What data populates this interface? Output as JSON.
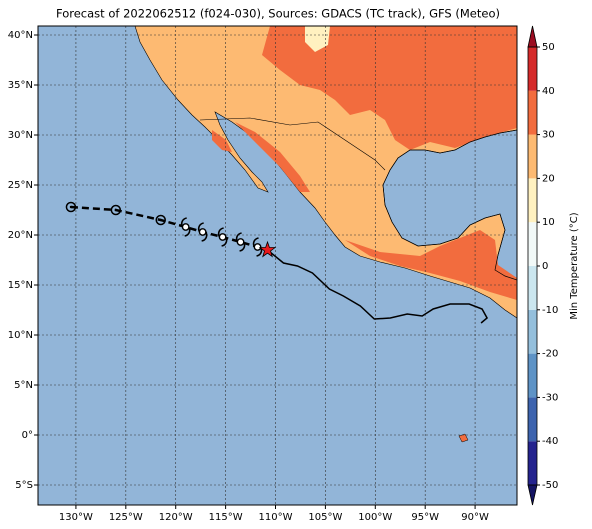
{
  "chart_data": {
    "type": "map",
    "title": "Forecast of 2022062512 (f024-030), Sources: GDACS (TC track), GFS (Meteo)",
    "xlim": [
      -133.8,
      -85.8
    ],
    "ylim": [
      -7,
      40.9
    ],
    "xticks": [
      {
        "value": -130,
        "label": "130°W"
      },
      {
        "value": -125,
        "label": "125°W"
      },
      {
        "value": -120,
        "label": "120°W"
      },
      {
        "value": -115,
        "label": "115°W"
      },
      {
        "value": -110,
        "label": "110°W"
      },
      {
        "value": -105,
        "label": "105°W"
      },
      {
        "value": -100,
        "label": "100°W"
      },
      {
        "value": -95,
        "label": "95°W"
      },
      {
        "value": -90,
        "label": "90°W"
      }
    ],
    "yticks": [
      {
        "value": -5,
        "label": "5°S"
      },
      {
        "value": 0,
        "label": "0°"
      },
      {
        "value": 5,
        "label": "5°N"
      },
      {
        "value": 10,
        "label": "10°N"
      },
      {
        "value": 15,
        "label": "15°N"
      },
      {
        "value": 20,
        "label": "20°N"
      },
      {
        "value": 25,
        "label": "25°N"
      },
      {
        "value": 30,
        "label": "30°N"
      },
      {
        "value": 35,
        "label": "35°N"
      },
      {
        "value": 40,
        "label": "40°N"
      }
    ],
    "grid": true,
    "ocean_color": "#92b5d8",
    "track_circles": {
      "lon": [
        -130.5,
        -126,
        -121.5
      ],
      "lat": [
        22.8,
        22.5,
        21.5
      ]
    },
    "track_hurricanes": {
      "lon": [
        -119,
        -117.3,
        -115.3,
        -113.5,
        -111.8
      ],
      "lat": [
        20.8,
        20.3,
        19.8,
        19.3,
        18.8
      ]
    },
    "current_position": {
      "lon": -110.8,
      "lat": 18.5
    },
    "past_track": {
      "lon": [
        -110.8,
        -109.2,
        -107.8,
        -106.3,
        -104.6,
        -103.2,
        -101.5,
        -100.1,
        -98.5,
        -96.8,
        -95.3,
        -94.2,
        -92.5,
        -90.6,
        -89.3,
        -88.8,
        -89.4
      ],
      "lat": [
        18.5,
        17.2,
        16.9,
        16.2,
        14.6,
        13.9,
        12.9,
        11.6,
        11.7,
        12.1,
        11.9,
        12.6,
        13.1,
        13.1,
        12.6,
        11.7,
        11.2
      ]
    },
    "colorbar": {
      "label": "Min Temperature (°C)",
      "lim": [
        -50,
        50
      ],
      "ticks": [
        -50,
        -40,
        -30,
        -20,
        -10,
        0,
        10,
        20,
        30,
        40,
        50
      ],
      "colors": [
        "#24238e",
        "#3d63ae",
        "#5e93c6",
        "#94bfdc",
        "#cbe6ef",
        "#f2f9f8",
        "#fff1c0",
        "#fdba72",
        "#f26c3e",
        "#d52a2a"
      ],
      "under_color": "#141463",
      "over_color": "#9b0d21"
    }
  }
}
